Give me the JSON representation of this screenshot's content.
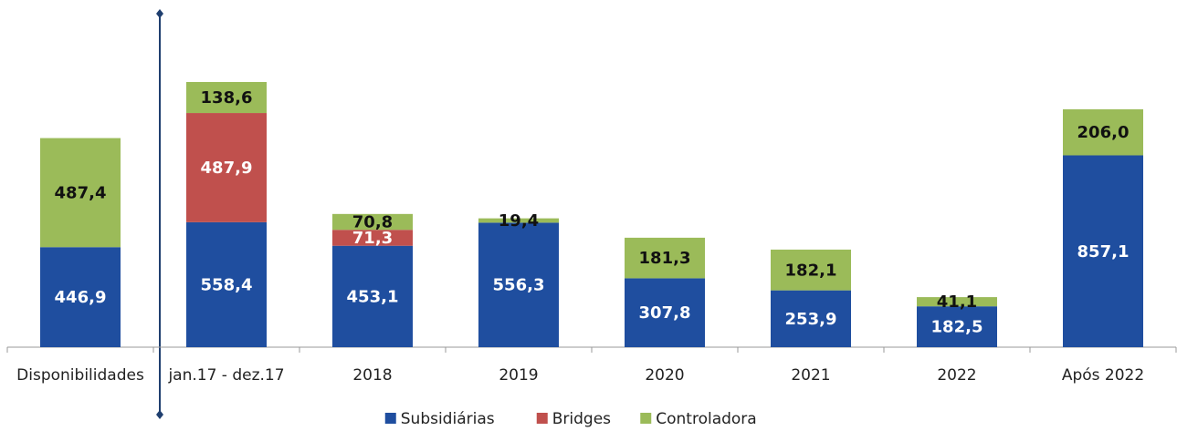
{
  "chart_data": {
    "type": "stacked_bar",
    "categories": [
      "Disponibilidades",
      "jan.17 - dez.17",
      "2018",
      "2019",
      "2020",
      "2021",
      "2022",
      "Após 2022"
    ],
    "series": [
      {
        "name": "Subsidiárias",
        "color": "#1f4e9f",
        "values": [
          446.9,
          558.4,
          453.1,
          556.3,
          307.8,
          253.9,
          182.5,
          857.1
        ],
        "value_labels": [
          "446,9",
          "558,4",
          "453,1",
          "556,3",
          "307,8",
          "253,9",
          "182,5",
          "857,1"
        ]
      },
      {
        "name": "Bridges",
        "color": "#c0504d",
        "values": [
          null,
          487.9,
          71.3,
          null,
          null,
          null,
          null,
          null
        ],
        "value_labels": [
          null,
          "487,9",
          "71,3",
          null,
          null,
          null,
          null,
          null
        ]
      },
      {
        "name": "Controladora",
        "color": "#9bbb59",
        "values": [
          487.4,
          138.6,
          70.8,
          19.4,
          181.3,
          182.1,
          41.1,
          206.0
        ],
        "value_labels": [
          "487,4",
          "138,6",
          "70,8",
          "19,4",
          "181,3",
          "182,1",
          "41,1",
          "206,0"
        ]
      }
    ],
    "legend": "bottom"
  }
}
